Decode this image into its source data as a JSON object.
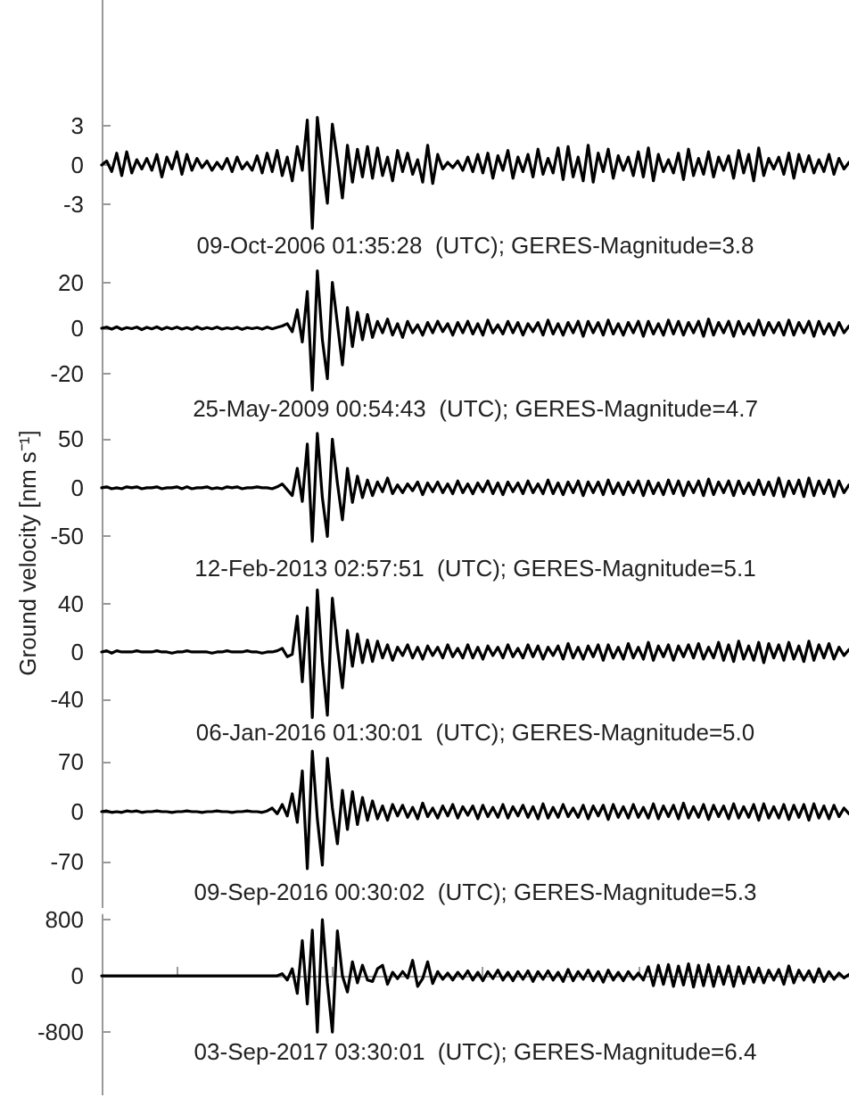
{
  "chart_data": [
    {
      "type": "line",
      "categories": [
        null,
        null,
        null,
        null,
        null,
        null,
        null,
        null,
        null,
        null,
        null,
        null,
        null,
        null,
        null,
        null,
        null,
        null,
        null,
        null,
        null,
        null,
        null,
        null,
        null,
        null,
        null,
        null,
        null,
        null,
        null,
        null,
        null,
        null,
        null,
        null,
        null,
        null,
        null,
        null,
        null,
        null,
        null,
        null,
        null,
        null,
        null,
        null,
        null,
        null,
        null,
        null,
        null,
        null,
        null,
        null,
        null,
        null,
        null,
        null,
        null,
        null,
        null,
        null,
        null,
        null,
        null,
        null,
        null,
        null,
        null,
        null,
        null,
        null,
        null,
        null,
        null,
        null,
        null,
        null,
        null,
        null,
        null,
        null,
        null,
        null,
        null,
        null,
        null,
        null,
        null,
        null,
        null,
        null,
        null,
        null,
        null,
        null,
        null,
        null,
        null,
        null,
        null,
        null,
        null,
        null,
        null,
        null,
        null,
        null,
        null,
        null,
        null,
        null,
        null,
        null,
        null,
        null,
        null,
        null,
        null,
        null,
        null,
        null,
        null,
        null,
        null,
        null,
        null,
        null,
        null,
        null,
        null,
        null,
        null,
        null,
        null,
        null,
        null,
        null,
        null,
        null,
        null,
        null,
        null,
        null,
        null,
        null,
        null,
        null
      ],
      "series": [
        {
          "color": "#000000",
          "values": [
            0,
            0.3,
            -0.5,
            0.9,
            -0.8,
            1.0,
            -0.6,
            0.4,
            -0.3,
            0.5,
            -0.4,
            0.8,
            -0.9,
            0.6,
            -0.3,
            1.0,
            -0.7,
            0.8,
            -0.4,
            0.5,
            -0.2,
            0.3,
            -0.4,
            0.2,
            -0.3,
            0.5,
            -0.5,
            0.6,
            -0.3,
            0.2,
            -0.4,
            0.7,
            -0.6,
            0.9,
            -0.5,
            1.1,
            -0.8,
            0.6,
            -1.2,
            1.4,
            -0.4,
            3.4,
            -4.8,
            3.6,
            0.2,
            -2.9,
            3.1,
            0.4,
            -2.5,
            1.5,
            -1.3,
            1.2,
            -0.9,
            1.4,
            -1.0,
            1.3,
            -0.8,
            0.6,
            -1.2,
            1.1,
            -0.5,
            0.9,
            -0.7,
            0.4,
            -1.3,
            1.5,
            -1.4,
            0.8,
            -0.3,
            0.2,
            -0.2,
            0.3,
            -0.4,
            0.6,
            -0.5,
            0.8,
            -0.6,
            0.9,
            -1.0,
            0.7,
            -0.4,
            1.1,
            -1.0,
            0.6,
            -0.5,
            0.8,
            -0.9,
            1.2,
            -0.7,
            0.5,
            -0.6,
            1.3,
            -1.1,
            1.4,
            -0.9,
            0.6,
            -1.2,
            1.5,
            -1.3,
            0.9,
            -0.5,
            1.2,
            -1.0,
            0.7,
            -0.4,
            0.6,
            -0.8,
            1.0,
            -0.9,
            1.3,
            -1.2,
            0.8,
            -0.5,
            0.4,
            -0.6,
            0.9,
            -1.1,
            1.2,
            -0.8,
            0.5,
            -0.7,
            1.0,
            -0.9,
            0.6,
            -0.4,
            0.7,
            -1.0,
            1.1,
            -0.6,
            0.8,
            -1.2,
            1.3,
            -0.8,
            0.5,
            -0.3,
            0.6,
            -0.7,
            0.9,
            -1.0,
            0.8,
            -0.5,
            0.7,
            -0.6,
            0.4,
            -0.5,
            0.8,
            -0.7,
            0.5,
            -0.3,
            0.2
          ]
        }
      ],
      "ylim": [
        -7.5,
        12.5
      ],
      "yticks": [
        -3,
        0,
        3
      ],
      "tick_labels": "y",
      "line_style": "solid",
      "annotations": [
        "09-Oct-2006 01:35:28  (UTC); GERES-Magnitude=3.8"
      ]
    },
    {
      "type": "line",
      "categories": [
        null,
        null,
        null,
        null,
        null,
        null,
        null,
        null,
        null,
        null,
        null,
        null,
        null,
        null,
        null,
        null,
        null,
        null,
        null,
        null,
        null,
        null,
        null,
        null,
        null,
        null,
        null,
        null,
        null,
        null,
        null,
        null,
        null,
        null,
        null,
        null,
        null,
        null,
        null,
        null,
        null,
        null,
        null,
        null,
        null,
        null,
        null,
        null,
        null,
        null,
        null,
        null,
        null,
        null,
        null,
        null,
        null,
        null,
        null,
        null,
        null,
        null,
        null,
        null,
        null,
        null,
        null,
        null,
        null,
        null,
        null,
        null,
        null,
        null,
        null,
        null,
        null,
        null,
        null,
        null,
        null,
        null,
        null,
        null,
        null,
        null,
        null,
        null,
        null,
        null,
        null,
        null,
        null,
        null,
        null,
        null,
        null,
        null,
        null,
        null,
        null,
        null,
        null,
        null,
        null,
        null,
        null,
        null,
        null,
        null,
        null,
        null,
        null,
        null,
        null,
        null,
        null,
        null,
        null,
        null,
        null,
        null,
        null,
        null,
        null,
        null,
        null,
        null,
        null,
        null,
        null,
        null,
        null,
        null,
        null,
        null,
        null,
        null,
        null,
        null,
        null,
        null,
        null,
        null,
        null,
        null,
        null,
        null,
        null,
        null
      ],
      "series": [
        {
          "color": "#000000",
          "values": [
            0,
            0.5,
            -0.4,
            0.6,
            -0.5,
            0.3,
            -0.2,
            0.5,
            -0.6,
            0.4,
            -0.3,
            0.6,
            -0.5,
            0.4,
            -0.3,
            0.5,
            -0.4,
            0.3,
            -0.5,
            0.6,
            -0.4,
            0.3,
            -0.3,
            0.5,
            -0.4,
            0.2,
            -0.3,
            0.4,
            -0.5,
            0.3,
            -0.2,
            0.3,
            -0.4,
            0.5,
            -0.3,
            0.4,
            1.0,
            2.0,
            -1.5,
            8,
            -6,
            16,
            -27,
            25,
            -5,
            -22,
            20,
            2,
            -16,
            9,
            -8,
            7,
            -5,
            6,
            -4,
            3,
            -2,
            4,
            -3,
            2,
            -4,
            3,
            -2,
            1.5,
            -3,
            2.5,
            -2,
            3,
            -1.5,
            2,
            -3,
            2.5,
            -2,
            3,
            -2.5,
            2,
            -3,
            3.5,
            -2,
            1.5,
            -2.5,
            3,
            -2,
            2.5,
            -3,
            2,
            -1.5,
            2.5,
            -3,
            3.5,
            -2.5,
            2,
            -3,
            2.5,
            -2,
            3,
            -3.5,
            3,
            -2,
            2.5,
            -3,
            3.5,
            -2.5,
            2,
            -3,
            2.5,
            -2,
            3,
            -3.5,
            3,
            -2.5,
            2,
            -3,
            3.5,
            -2.5,
            3,
            -3,
            2.5,
            -2,
            3,
            -3.5,
            4,
            -3,
            2.5,
            -2,
            3,
            -3.5,
            3,
            -2.5,
            2,
            -3,
            3.5,
            -3,
            2.5,
            -2,
            2.5,
            -3,
            3.5,
            -3,
            2.5,
            -2,
            3,
            -3.5,
            3,
            -2.5,
            2,
            -3,
            2.5,
            -2,
            1
          ]
        }
      ],
      "ylim": [
        -42,
        28
      ],
      "yticks": [
        -20,
        0,
        20
      ],
      "tick_labels": "y",
      "line_style": "solid",
      "annotations": [
        "25-May-2009 00:54:43  (UTC); GERES-Magnitude=4.7"
      ]
    },
    {
      "type": "line",
      "ylabel": "Ground velocity [nm s⁻¹]",
      "categories": [
        null,
        null,
        null,
        null,
        null,
        null,
        null,
        null,
        null,
        null,
        null,
        null,
        null,
        null,
        null,
        null,
        null,
        null,
        null,
        null,
        null,
        null,
        null,
        null,
        null,
        null,
        null,
        null,
        null,
        null,
        null,
        null,
        null,
        null,
        null,
        null,
        null,
        null,
        null,
        null,
        null,
        null,
        null,
        null,
        null,
        null,
        null,
        null,
        null,
        null,
        null,
        null,
        null,
        null,
        null,
        null,
        null,
        null,
        null,
        null,
        null,
        null,
        null,
        null,
        null,
        null,
        null,
        null,
        null,
        null,
        null,
        null,
        null,
        null,
        null,
        null,
        null,
        null,
        null,
        null,
        null,
        null,
        null,
        null,
        null,
        null,
        null,
        null,
        null,
        null,
        null,
        null,
        null,
        null,
        null,
        null,
        null,
        null,
        null,
        null,
        null,
        null,
        null,
        null,
        null,
        null,
        null,
        null,
        null,
        null,
        null,
        null,
        null,
        null,
        null,
        null,
        null,
        null,
        null,
        null,
        null,
        null,
        null,
        null,
        null,
        null,
        null,
        null,
        null,
        null,
        null,
        null,
        null,
        null,
        null,
        null,
        null,
        null,
        null,
        null,
        null,
        null,
        null,
        null,
        null,
        null,
        null,
        null,
        null,
        null
      ],
      "series": [
        {
          "color": "#000000",
          "values": [
            0,
            1,
            -1,
            0,
            -1,
            1,
            0,
            1,
            -1,
            0,
            0,
            1,
            -1,
            0,
            0,
            1,
            -1,
            1,
            -1,
            0,
            0,
            1,
            -1,
            0,
            -1,
            1,
            0,
            1,
            -1,
            0,
            0,
            1,
            0,
            0,
            -1,
            1,
            4,
            -2,
            -8,
            20,
            -14,
            45,
            -55,
            56,
            -10,
            -50,
            50,
            5,
            -33,
            20,
            -15,
            12,
            -10,
            8,
            -8,
            6,
            -4,
            10,
            -6,
            3,
            -5,
            4,
            -3,
            6,
            -7,
            5,
            -4,
            6,
            -5,
            4,
            -6,
            7,
            -5,
            4,
            -6,
            5,
            -4,
            7,
            -6,
            5,
            -7,
            6,
            -4,
            5,
            -6,
            7,
            -5,
            4,
            -6,
            8,
            -6,
            5,
            -7,
            6,
            -5,
            7,
            -8,
            6,
            -5,
            6,
            -7,
            8,
            -6,
            5,
            -7,
            6,
            -5,
            7,
            -8,
            7,
            -6,
            5,
            -7,
            8,
            -6,
            7,
            -8,
            6,
            -5,
            7,
            -8,
            9,
            -7,
            6,
            -5,
            7,
            -8,
            7,
            -6,
            5,
            -7,
            8,
            -7,
            6,
            -8,
            10,
            -9,
            7,
            -6,
            8,
            -9,
            10,
            -8,
            7,
            -6,
            8,
            -9,
            7,
            -5,
            3
          ]
        }
      ],
      "ylim": [
        -100,
        65
      ],
      "yticks": [
        -50,
        0,
        50
      ],
      "tick_labels": "y",
      "line_style": "solid",
      "annotations": [
        "12-Feb-2013 02:57:51  (UTC); GERES-Magnitude=5.1"
      ]
    },
    {
      "type": "line",
      "categories": [
        null,
        null,
        null,
        null,
        null,
        null,
        null,
        null,
        null,
        null,
        null,
        null,
        null,
        null,
        null,
        null,
        null,
        null,
        null,
        null,
        null,
        null,
        null,
        null,
        null,
        null,
        null,
        null,
        null,
        null,
        null,
        null,
        null,
        null,
        null,
        null,
        null,
        null,
        null,
        null,
        null,
        null,
        null,
        null,
        null,
        null,
        null,
        null,
        null,
        null,
        null,
        null,
        null,
        null,
        null,
        null,
        null,
        null,
        null,
        null,
        null,
        null,
        null,
        null,
        null,
        null,
        null,
        null,
        null,
        null,
        null,
        null,
        null,
        null,
        null,
        null,
        null,
        null,
        null,
        null,
        null,
        null,
        null,
        null,
        null,
        null,
        null,
        null,
        null,
        null,
        null,
        null,
        null,
        null,
        null,
        null,
        null,
        null,
        null,
        null,
        null,
        null,
        null,
        null,
        null,
        null,
        null,
        null,
        null,
        null,
        null,
        null,
        null,
        null,
        null,
        null,
        null,
        null,
        null,
        null,
        null,
        null,
        null,
        null,
        null,
        null,
        null,
        null,
        null,
        null,
        null,
        null,
        null,
        null,
        null,
        null,
        null,
        null,
        null,
        null,
        null,
        null,
        null,
        null,
        null,
        null,
        null,
        null,
        null,
        null
      ],
      "series": [
        {
          "color": "#000000",
          "values": [
            0,
            1,
            -1,
            1,
            0,
            0,
            0,
            1,
            0,
            0,
            0,
            1,
            0,
            0,
            -1,
            0,
            0,
            1,
            0,
            0,
            0,
            0,
            -1,
            0,
            0,
            1,
            0,
            0,
            0,
            1,
            0,
            0,
            -1,
            0,
            0,
            1,
            3,
            -4,
            -2,
            30,
            -25,
            37,
            -55,
            52,
            -8,
            -53,
            45,
            4,
            -30,
            18,
            -12,
            15,
            -9,
            10,
            -8,
            9,
            -5,
            6,
            -7,
            4,
            -3,
            6,
            -5,
            4,
            -6,
            5,
            -3,
            4,
            -5,
            6,
            -4,
            3,
            -5,
            6,
            -5,
            4,
            -6,
            5,
            -3,
            4,
            -5,
            6,
            -4,
            3,
            -5,
            6,
            -4,
            5,
            -6,
            4,
            -3,
            5,
            -6,
            7,
            -5,
            4,
            -6,
            5,
            -4,
            6,
            -7,
            6,
            -5,
            4,
            -6,
            7,
            -5,
            4,
            -6,
            8,
            -7,
            5,
            -4,
            6,
            -7,
            5,
            -4,
            6,
            -5,
            7,
            -6,
            4,
            -5,
            8,
            -7,
            6,
            -8,
            9,
            -6,
            5,
            -7,
            8,
            -9,
            7,
            -5,
            6,
            -7,
            8,
            -6,
            5,
            -8,
            9,
            -7,
            6,
            -5,
            7,
            -6,
            4,
            -3,
            2
          ]
        }
      ],
      "ylim": [
        -80,
        56
      ],
      "yticks": [
        -40,
        0,
        40
      ],
      "tick_labels": "y",
      "line_style": "solid",
      "annotations": [
        "06-Jan-2016 01:30:01  (UTC); GERES-Magnitude=5.0"
      ]
    },
    {
      "type": "line",
      "categories": [
        null,
        null,
        null,
        null,
        null,
        null,
        null,
        null,
        null,
        null,
        null,
        null,
        null,
        null,
        null,
        null,
        null,
        null,
        null,
        null,
        null,
        null,
        null,
        null,
        null,
        null,
        null,
        null,
        null,
        null,
        null,
        null,
        null,
        null,
        null,
        null,
        null,
        null,
        null,
        null,
        null,
        null,
        null,
        null,
        null,
        null,
        null,
        null,
        null,
        null,
        null,
        null,
        null,
        null,
        null,
        null,
        null,
        null,
        null,
        null,
        null,
        null,
        null,
        null,
        null,
        null,
        null,
        null,
        null,
        null,
        null,
        null,
        null,
        null,
        null,
        null,
        null,
        null,
        null,
        null,
        null,
        null,
        null,
        null,
        null,
        null,
        null,
        null,
        null,
        null,
        null,
        null,
        null,
        null,
        null,
        null,
        null,
        null,
        null,
        null,
        null,
        null,
        null,
        null,
        null,
        null,
        null,
        null,
        null,
        null,
        null,
        null,
        null,
        null,
        null,
        null,
        null,
        null,
        null,
        null,
        null,
        null,
        null,
        null,
        null,
        null,
        null,
        null,
        null,
        null,
        null,
        null,
        null,
        null,
        null,
        null,
        null,
        null,
        null,
        null,
        null,
        null,
        null,
        null,
        null,
        null,
        null,
        null,
        null,
        null
      ],
      "series": [
        {
          "color": "#000000",
          "values": [
            0,
            1,
            -1,
            0,
            -1,
            1,
            0,
            1,
            -1,
            0,
            0,
            1,
            0,
            0,
            -1,
            0,
            0,
            1,
            0,
            0,
            -1,
            0,
            0,
            1,
            0,
            0,
            -1,
            0,
            0,
            1,
            0,
            0,
            -1,
            1,
            5,
            -3,
            10,
            -6,
            25,
            -15,
            57,
            -80,
            85,
            -10,
            -75,
            75,
            5,
            -45,
            30,
            -25,
            28,
            -18,
            20,
            -12,
            15,
            -10,
            8,
            -12,
            10,
            -6,
            9,
            -8,
            6,
            -10,
            12,
            -7,
            5,
            -9,
            8,
            -6,
            10,
            -9,
            7,
            -5,
            8,
            -10,
            9,
            -7,
            6,
            -8,
            10,
            -9,
            7,
            -6,
            9,
            -8,
            7,
            -10,
            11,
            -9,
            6,
            -8,
            10,
            -7,
            5,
            -8,
            9,
            -10,
            8,
            -6,
            9,
            -11,
            10,
            -8,
            7,
            -9,
            10,
            -8,
            6,
            -9,
            11,
            -10,
            8,
            -7,
            9,
            -10,
            12,
            -9,
            7,
            -8,
            10,
            -11,
            9,
            -7,
            8,
            -10,
            11,
            -9,
            7,
            -8,
            10,
            -12,
            11,
            -9,
            7,
            -9,
            10,
            -11,
            9,
            -8,
            10,
            -12,
            11,
            -9,
            8,
            -10,
            9,
            -7,
            5,
            -3
          ]
        }
      ],
      "ylim": [
        -135,
        90
      ],
      "yticks": [
        -70,
        0,
        70
      ],
      "tick_labels": "y",
      "line_style": "solid",
      "annotations": [
        "09-Sep-2016 00:30:02  (UTC); GERES-Magnitude=5.3"
      ]
    },
    {
      "type": "line",
      "categories": [
        null,
        null,
        null,
        null,
        null,
        null,
        null,
        null,
        null,
        null,
        null,
        null,
        null,
        null,
        null,
        null,
        null,
        null,
        null,
        null,
        null,
        null,
        null,
        null,
        null,
        null,
        null,
        null,
        null,
        null,
        null,
        null,
        null,
        null,
        null,
        null,
        null,
        null,
        null,
        null,
        null,
        null,
        null,
        null,
        null,
        null,
        null,
        null,
        null,
        null,
        null,
        null,
        null,
        null,
        null,
        null,
        null,
        null,
        null,
        null,
        null,
        null,
        null,
        null,
        null,
        null,
        null,
        null,
        null,
        null,
        null,
        null,
        null,
        null,
        null,
        null,
        null,
        null,
        null,
        null,
        null,
        null,
        null,
        null,
        null,
        null,
        null,
        null,
        null,
        null,
        null,
        null,
        null,
        null,
        null,
        null,
        null,
        null,
        null,
        null,
        null,
        null,
        null,
        null,
        null,
        null,
        null,
        null,
        null,
        null,
        null,
        null,
        null,
        null,
        null,
        null,
        null,
        null,
        null,
        null,
        null,
        null,
        null,
        null,
        null,
        null,
        null,
        null,
        null,
        null,
        null,
        null,
        null,
        null,
        null,
        null,
        null,
        null,
        null,
        null,
        null,
        null,
        null,
        null,
        null,
        null,
        null,
        null,
        null,
        null
      ],
      "series": [
        {
          "color": "#000000",
          "values": [
            0,
            0,
            0,
            0,
            0,
            0,
            0,
            0,
            0,
            0,
            0,
            0,
            0,
            0,
            0,
            0,
            0,
            0,
            0,
            0,
            0,
            0,
            0,
            0,
            0,
            0,
            0,
            0,
            0,
            0,
            0,
            0,
            0,
            0,
            0,
            0,
            30,
            -60,
            100,
            -250,
            500,
            -400,
            650,
            -800,
            800,
            -100,
            -800,
            640,
            0,
            -230,
            200,
            -100,
            150,
            -60,
            -80,
            100,
            150,
            -120,
            50,
            -40,
            60,
            -30,
            220,
            -150,
            -40,
            200,
            -110,
            60,
            -50,
            40,
            -60,
            50,
            -40,
            70,
            -60,
            50,
            -70,
            60,
            -40,
            80,
            -60,
            50,
            -70,
            60,
            -50,
            70,
            -80,
            60,
            -50,
            70,
            -60,
            50,
            -80,
            90,
            -70,
            60,
            -50,
            80,
            -70,
            60,
            -90,
            80,
            -60,
            50,
            -70,
            60,
            -50,
            40,
            -60,
            130,
            -140,
            150,
            -120,
            160,
            -150,
            140,
            -130,
            170,
            -160,
            150,
            -140,
            160,
            -150,
            130,
            -120,
            140,
            -150,
            130,
            -110,
            120,
            -90,
            110,
            -100,
            80,
            -60,
            90,
            -120,
            140,
            -100,
            80,
            -60,
            70,
            -90,
            100,
            -80,
            60,
            -50,
            40,
            -30,
            20
          ]
        }
      ],
      "ylim": [
        -1700,
        870
      ],
      "yticks": [
        -800,
        0,
        800
      ],
      "tick_labels": "y",
      "line_style": "solid",
      "annotations": [
        "03-Sep-2017 03:30:01  (UTC); GERES-Magnitude=6.4"
      ]
    }
  ]
}
